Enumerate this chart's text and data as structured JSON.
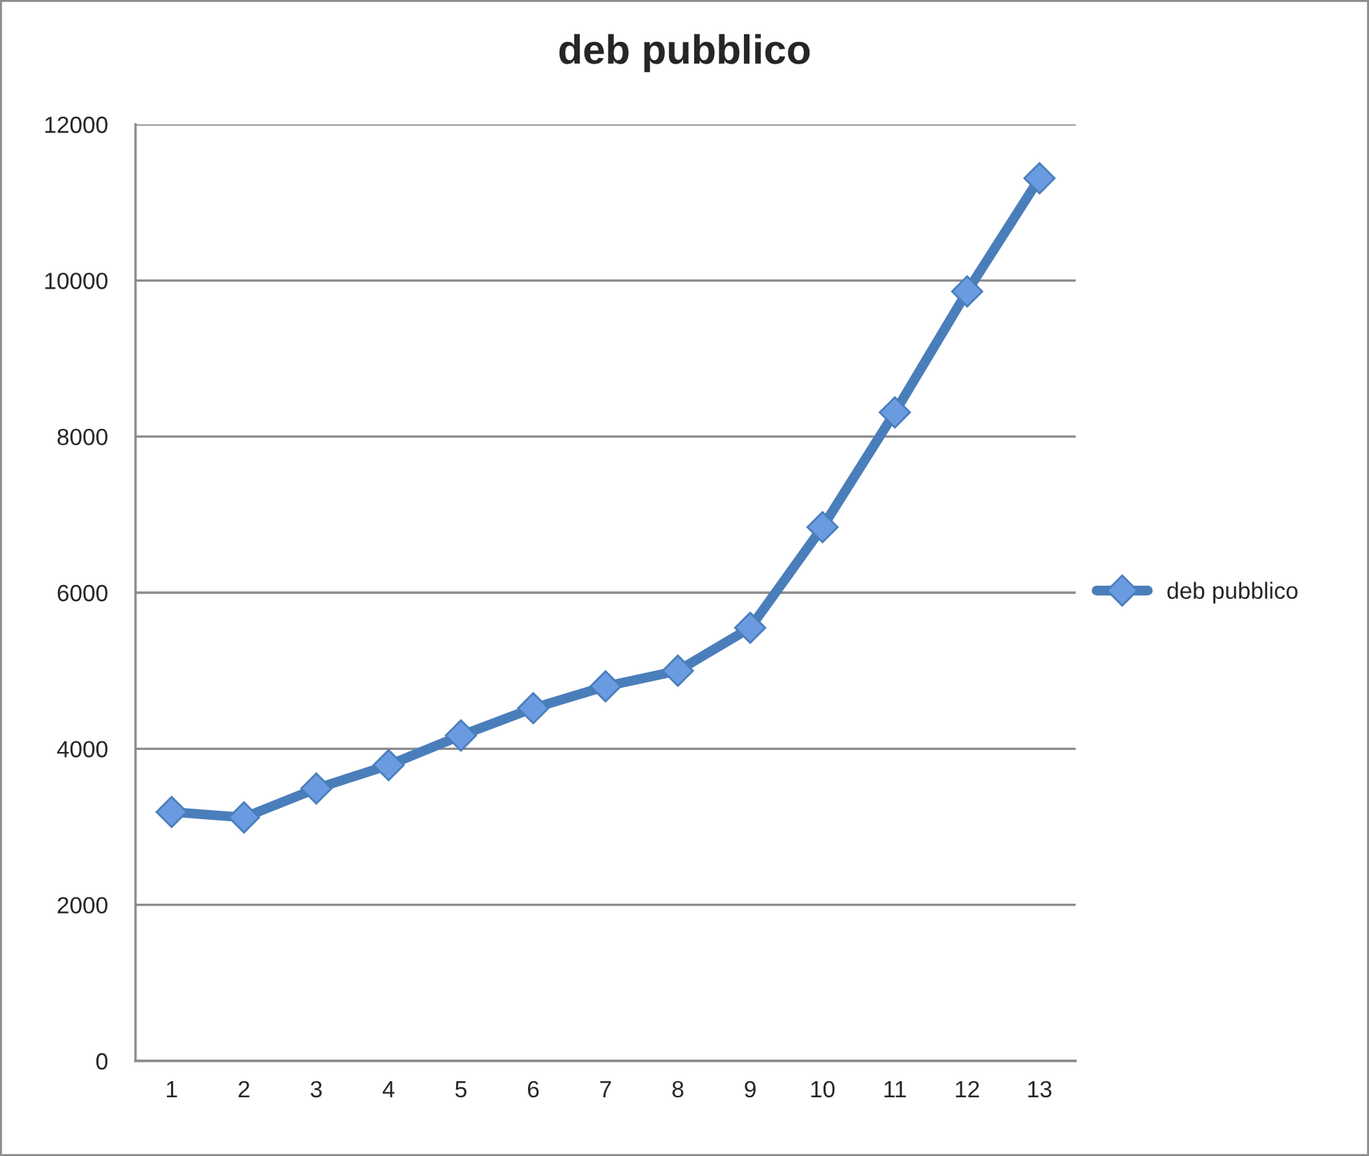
{
  "chart_data": {
    "type": "line",
    "title": "deb pubblico",
    "categories": [
      "1",
      "2",
      "3",
      "4",
      "5",
      "6",
      "7",
      "8",
      "9",
      "10",
      "11",
      "12",
      "13"
    ],
    "series": [
      {
        "name": "deb pubblico",
        "color": "#4a7ebb",
        "values": [
          3190,
          3120,
          3490,
          3790,
          4170,
          4520,
          4800,
          5000,
          5550,
          6840,
          8310,
          9860,
          11310
        ]
      }
    ],
    "ylim": [
      0,
      12000
    ],
    "yticks": [
      0,
      2000,
      4000,
      6000,
      8000,
      10000,
      12000
    ],
    "grid": "y",
    "legend": "right",
    "marker": "diamond",
    "line_style": "solid"
  }
}
